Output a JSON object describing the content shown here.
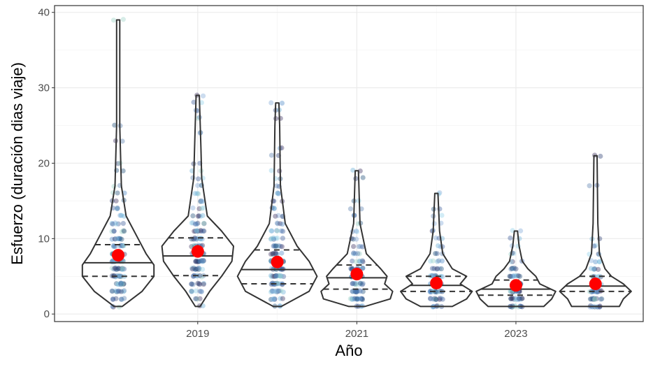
{
  "chart_data": {
    "type": "violin",
    "xlabel": "Año",
    "ylabel": "Esfuerzo (duración dias viaje)",
    "xlim": [
      2017.2,
      2024.6
    ],
    "xticks": [
      2019,
      2021,
      2023
    ],
    "ylim": [
      -1,
      40.9
    ],
    "yticks": [
      0,
      10,
      20,
      30,
      40
    ],
    "grid": true,
    "mean_color": "#ff0000",
    "line_color": "#333333",
    "point_colors": [
      "#2c3e73",
      "#3a5a98",
      "#4a86c5",
      "#6aaed6",
      "#8fd0e8",
      "#3b2f5e",
      "#5b7fb0",
      "#9ad3c6",
      "#1f4e79",
      "#7fa7d8"
    ],
    "violins": [
      {
        "x": 2018,
        "mean": 7.8,
        "quantiles": [
          5,
          6.8,
          9.2
        ],
        "density_y": [
          1,
          3,
          5,
          6.5,
          8,
          10,
          13,
          17,
          25,
          39
        ],
        "density_width": [
          0.05,
          0.3,
          0.45,
          0.45,
          0.35,
          0.25,
          0.1,
          0.04,
          0.02,
          0.02
        ],
        "points": [
          1,
          2,
          3,
          4,
          5,
          6,
          7,
          8,
          9,
          10,
          11,
          12,
          13,
          14,
          15,
          16,
          17,
          19,
          20,
          23,
          25,
          39
        ]
      },
      {
        "x": 2019,
        "mean": 8.3,
        "quantiles": [
          5.1,
          7.7,
          10.1
        ],
        "density_y": [
          1,
          3,
          5,
          7,
          9,
          11,
          13,
          18,
          22,
          29
        ],
        "density_width": [
          0.03,
          0.15,
          0.3,
          0.43,
          0.45,
          0.3,
          0.12,
          0.05,
          0.04,
          0.02
        ],
        "points": [
          1,
          2,
          3,
          4,
          5,
          6,
          7,
          8,
          9,
          10,
          11,
          12,
          13,
          14,
          15,
          16,
          17,
          18,
          19,
          20,
          24,
          26,
          27,
          28,
          29
        ]
      },
      {
        "x": 2020,
        "mean": 6.9,
        "quantiles": [
          4,
          5.9,
          8.5
        ],
        "density_y": [
          1,
          3,
          5,
          7,
          9,
          12,
          17,
          25,
          28
        ],
        "density_width": [
          0.05,
          0.4,
          0.5,
          0.4,
          0.25,
          0.1,
          0.04,
          0.03,
          0.02
        ],
        "points": [
          1,
          2,
          3,
          4,
          5,
          6,
          7,
          8,
          9,
          10,
          11,
          12,
          13,
          14,
          15,
          16,
          17,
          18,
          19,
          21,
          22,
          26,
          27,
          28
        ]
      },
      {
        "x": 2021,
        "mean": 5.3,
        "quantiles": [
          3.3,
          4.8,
          6.5
        ],
        "density_y": [
          1,
          2,
          3,
          4,
          5,
          6,
          8,
          12,
          19
        ],
        "density_width": [
          0.1,
          0.42,
          0.45,
          0.35,
          0.38,
          0.3,
          0.12,
          0.04,
          0.02
        ],
        "points": [
          1,
          2,
          3,
          4,
          5,
          6,
          7,
          8,
          9,
          10,
          11,
          12,
          13,
          14,
          15,
          18,
          19
        ]
      },
      {
        "x": 2022,
        "mean": 4.1,
        "quantiles": [
          3,
          3.8,
          5
        ],
        "density_y": [
          1,
          2,
          3,
          4,
          5,
          6,
          8,
          11,
          16
        ],
        "density_width": [
          0.2,
          0.38,
          0.45,
          0.3,
          0.38,
          0.2,
          0.08,
          0.04,
          0.02
        ],
        "points": [
          1,
          2,
          3,
          4,
          5,
          6,
          7,
          8,
          9,
          10,
          11,
          12,
          13,
          14,
          16
        ]
      },
      {
        "x": 2023,
        "mean": 3.8,
        "quantiles": [
          2.5,
          3.3,
          4.5
        ],
        "density_y": [
          1,
          2,
          3,
          4,
          5,
          6,
          7,
          9,
          11
        ],
        "density_width": [
          0.35,
          0.45,
          0.5,
          0.3,
          0.25,
          0.15,
          0.08,
          0.04,
          0.02
        ],
        "points": [
          1,
          2,
          3,
          4,
          5,
          6,
          7,
          8,
          9,
          10,
          11
        ]
      },
      {
        "x": 2024,
        "mean": 4.0,
        "quantiles": [
          3,
          3.7,
          5
        ],
        "density_y": [
          1,
          2,
          3,
          4,
          5,
          6,
          8,
          12,
          21
        ],
        "density_width": [
          0.3,
          0.35,
          0.45,
          0.35,
          0.2,
          0.12,
          0.05,
          0.03,
          0.02
        ],
        "points": [
          1,
          2,
          3,
          4,
          5,
          6,
          7,
          8,
          9,
          10,
          17,
          21
        ]
      }
    ]
  }
}
